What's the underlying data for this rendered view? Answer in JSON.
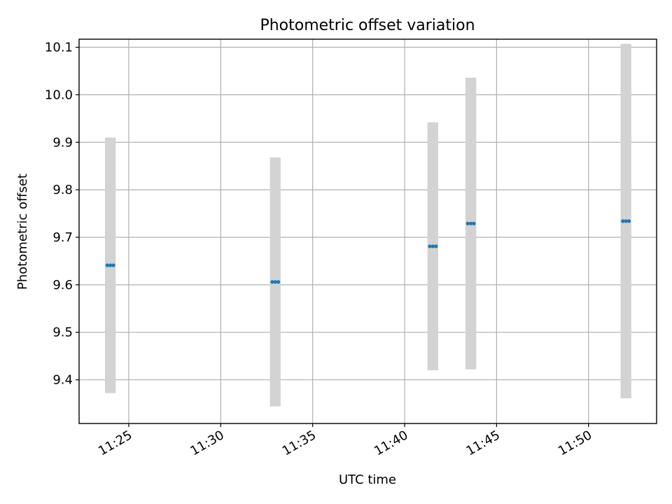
{
  "chart_data": {
    "type": "scatter",
    "title": "Photometric offset variation",
    "xlabel": "UTC time",
    "ylabel": "Photometric offset",
    "xlim": [
      "11:22:18",
      "11:53:42"
    ],
    "ylim": [
      9.308,
      10.117
    ],
    "xticks": [
      "11:25",
      "11:30",
      "11:35",
      "11:40",
      "11:45",
      "11:50"
    ],
    "yticks": [
      "9.4",
      "9.5",
      "9.6",
      "9.7",
      "9.8",
      "9.9",
      "10.0",
      "10.1"
    ],
    "grid": true,
    "colors": {
      "point": "#1f77b4",
      "errorbar": "#d3d3d3",
      "grid": "#b0b0b0"
    },
    "series": [
      {
        "points": [
          {
            "x": "11:23:50",
            "y": 9.641,
            "yerr": 0.269
          },
          {
            "x": "11:24:00",
            "y": 9.641,
            "yerr": 0.269
          },
          {
            "x": "11:24:10",
            "y": 9.641,
            "yerr": 0.269
          },
          {
            "x": "11:32:48",
            "y": 9.606,
            "yerr": 0.262
          },
          {
            "x": "11:32:58",
            "y": 9.606,
            "yerr": 0.262
          },
          {
            "x": "11:33:08",
            "y": 9.606,
            "yerr": 0.262
          },
          {
            "x": "11:41:22",
            "y": 9.681,
            "yerr": 0.261
          },
          {
            "x": "11:41:32",
            "y": 9.681,
            "yerr": 0.261
          },
          {
            "x": "11:41:42",
            "y": 9.681,
            "yerr": 0.261
          },
          {
            "x": "11:43:26",
            "y": 9.729,
            "yerr": 0.307
          },
          {
            "x": "11:43:36",
            "y": 9.729,
            "yerr": 0.307
          },
          {
            "x": "11:43:46",
            "y": 9.729,
            "yerr": 0.307
          },
          {
            "x": "11:51:52",
            "y": 9.734,
            "yerr": 0.373
          },
          {
            "x": "11:52:02",
            "y": 9.734,
            "yerr": 0.373
          },
          {
            "x": "11:52:12",
            "y": 9.734,
            "yerr": 0.373
          }
        ]
      }
    ]
  }
}
